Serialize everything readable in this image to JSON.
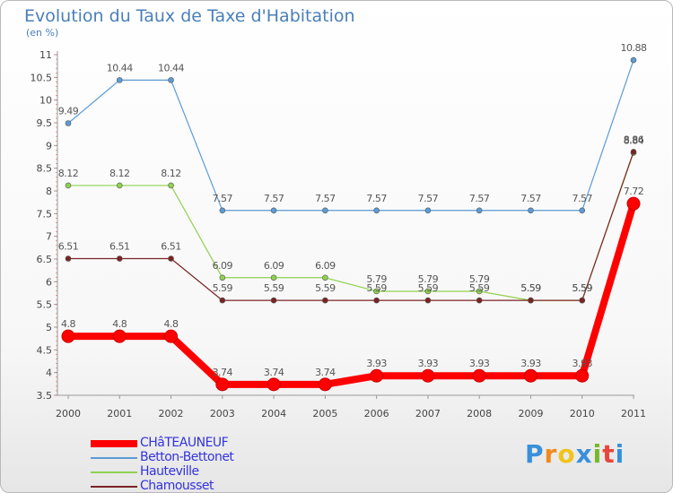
{
  "header": {
    "title": "Evolution du Taux de Taxe d'Habitation",
    "subtitle": "(en %)"
  },
  "chart_data": {
    "type": "line",
    "title": "Evolution du Taux de Taxe d'Habitation",
    "ylabel": "(en %)",
    "xlabel": "",
    "x": [
      "2000",
      "2001",
      "2002",
      "2003",
      "2004",
      "2005",
      "2006",
      "2007",
      "2008",
      "2009",
      "2010",
      "2011"
    ],
    "ylim": [
      3.5,
      11
    ],
    "yticks": [
      "3.5",
      "4",
      "4.5",
      "5",
      "5.5",
      "6",
      "6.5",
      "7",
      "7.5",
      "8",
      "8.5",
      "9",
      "9.5",
      "10",
      "10.5",
      "11"
    ],
    "grid": false,
    "legend_position": "bottom-left",
    "series": [
      {
        "name": "CHâTEAUNEUF",
        "color": "#ff0000",
        "values": [
          4.8,
          4.8,
          4.8,
          3.74,
          3.74,
          3.74,
          3.93,
          3.93,
          3.93,
          3.93,
          3.93,
          7.72
        ],
        "labels": [
          "4.8",
          "4.8",
          "4.8",
          "3.74",
          "3.74",
          "3.74",
          "3.93",
          "3.93",
          "3.93",
          "3.93",
          "3.93",
          "7.72"
        ]
      },
      {
        "name": "Betton-Bettonet",
        "color": "#5b9bd5",
        "values": [
          9.49,
          10.44,
          10.44,
          7.57,
          7.57,
          7.57,
          7.57,
          7.57,
          7.57,
          7.57,
          7.57,
          10.88
        ],
        "labels": [
          "9.49",
          "10.44",
          "10.44",
          "7.57",
          "7.57",
          "7.57",
          "7.57",
          "7.57",
          "7.57",
          "7.57",
          "7.57",
          "10.88"
        ]
      },
      {
        "name": "Hauteville",
        "color": "#8fd14f",
        "values": [
          8.12,
          8.12,
          8.12,
          6.09,
          6.09,
          6.09,
          5.79,
          5.79,
          5.79,
          5.59,
          5.59,
          8.84
        ],
        "labels": [
          "8.12",
          "8.12",
          "8.12",
          "6.09",
          "6.09",
          "6.09",
          "5.79",
          "5.79",
          "5.79",
          "5.59",
          "5.59",
          "8.84"
        ]
      },
      {
        "name": "Chamousset",
        "color": "#7b2323",
        "values": [
          6.51,
          6.51,
          6.51,
          5.59,
          5.59,
          5.59,
          5.59,
          5.59,
          5.59,
          5.59,
          5.59,
          8.86
        ],
        "labels": [
          "6.51",
          "6.51",
          "6.51",
          "5.59",
          "5.59",
          "5.59",
          "5.59",
          "5.59",
          "5.59",
          "5.59",
          "5.59",
          "8.86"
        ]
      }
    ]
  },
  "logo": {
    "letters": [
      "P",
      "r",
      "o",
      "x",
      "i",
      "t",
      "i"
    ],
    "colors": [
      "#3a8fd9",
      "#f08a1c",
      "#f0c41c",
      "#3a8fd9",
      "#77b82a",
      "#e8463a",
      "#3a8fd9"
    ]
  }
}
